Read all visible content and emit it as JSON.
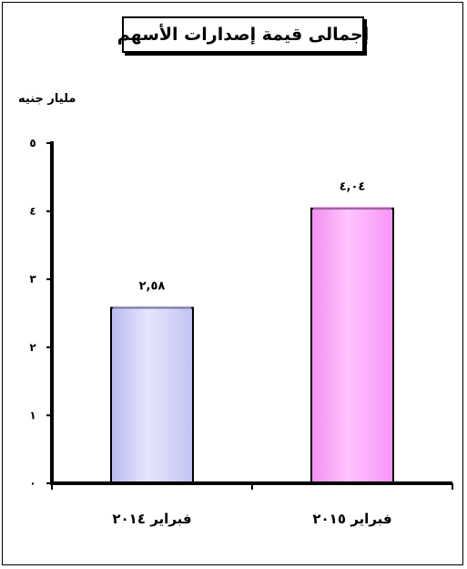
{
  "chart_data": {
    "type": "bar",
    "title": "إجمالى قيمة إصدارات الأسهم",
    "ylabel": "مليار جنيه",
    "xlabel": "",
    "categories": [
      "فبراير ٢٠١٤",
      "فبراير ٢٠١٥"
    ],
    "values": [
      2.58,
      4.04
    ],
    "value_labels": [
      "٢,٥٨",
      "٤,٠٤"
    ],
    "ylim": [
      0,
      5
    ],
    "yticks": [
      0,
      1,
      2,
      3,
      4,
      5
    ],
    "ytick_labels": [
      "٠",
      "١",
      "٢",
      "٣",
      "٤",
      "٥"
    ],
    "bar_colors": [
      "#ccccff",
      "#ff99ff"
    ],
    "grid": false,
    "legend": "none"
  }
}
